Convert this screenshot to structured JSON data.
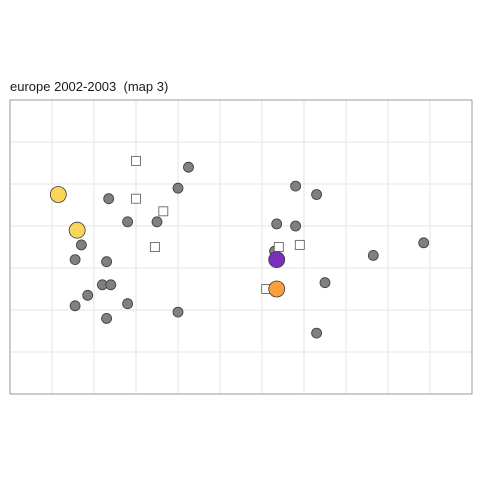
{
  "chart_data": {
    "type": "scatter",
    "title": "europe 2002-2003  (map 3)",
    "xlabel": "",
    "ylabel": "",
    "xlim": [
      0,
      22
    ],
    "ylim": [
      0,
      14
    ],
    "grid": true,
    "legend": "none",
    "colors": {
      "grey_point": "#808080",
      "grey_edge": "#3a3a3a",
      "square_edge": "#666666",
      "yellow": "#F9D55A",
      "orange": "#F9A03C",
      "purple": "#7A2FBE",
      "grid": "#e5e5e5",
      "frame": "#999999"
    },
    "series": [
      {
        "marker": "circle",
        "color": "#808080",
        "points": [
          [
            8.5,
            10.8
          ],
          [
            8.0,
            9.8
          ],
          [
            4.7,
            9.3
          ],
          [
            5.6,
            8.2
          ],
          [
            7.0,
            8.2
          ],
          [
            3.4,
            7.1
          ],
          [
            3.1,
            6.4
          ],
          [
            4.6,
            6.3
          ],
          [
            4.4,
            5.2
          ],
          [
            4.8,
            5.2
          ],
          [
            3.7,
            4.7
          ],
          [
            5.6,
            4.3
          ],
          [
            3.1,
            4.2
          ],
          [
            4.6,
            3.6
          ],
          [
            8.0,
            3.9
          ],
          [
            13.6,
            9.9
          ],
          [
            14.6,
            9.5
          ],
          [
            12.7,
            8.1
          ],
          [
            13.6,
            8.0
          ],
          [
            12.6,
            6.8
          ],
          [
            15.0,
            5.3
          ],
          [
            14.6,
            2.9
          ],
          [
            17.3,
            6.6
          ],
          [
            19.7,
            7.2
          ]
        ]
      },
      {
        "marker": "square",
        "color": "#ffffff",
        "points": [
          [
            6.0,
            11.1
          ],
          [
            6.0,
            9.3
          ],
          [
            7.3,
            8.7
          ],
          [
            6.9,
            7.0
          ],
          [
            12.8,
            7.0
          ],
          [
            13.8,
            7.1
          ],
          [
            12.2,
            5.0
          ]
        ]
      },
      {
        "marker": "circle",
        "color": "#F9D55A",
        "size": "large",
        "points": [
          [
            2.3,
            9.5
          ],
          [
            3.2,
            7.8
          ]
        ]
      },
      {
        "marker": "circle",
        "color": "#7A2FBE",
        "size": "large",
        "points": [
          [
            12.7,
            6.4
          ]
        ]
      },
      {
        "marker": "circle",
        "color": "#F9A03C",
        "size": "large",
        "points": [
          [
            12.7,
            5.0
          ]
        ]
      }
    ]
  }
}
